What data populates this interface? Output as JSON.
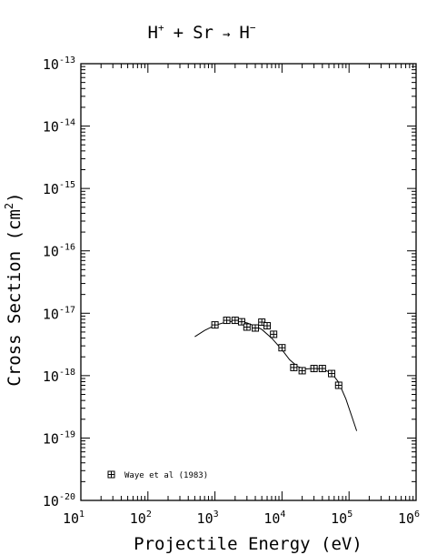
{
  "chart_data": {
    "type": "scatter",
    "title_parts": {
      "a": "H",
      "a_sup": "+",
      "plus": "+",
      "b": "Sr",
      "arrow": "→",
      "c": "H",
      "c_sup": "−"
    },
    "xlabel": "Projectile Energy (eV)",
    "ylabel_main": "Cross Section (cm",
    "ylabel_sup": "2",
    "ylabel_close": ")",
    "x_scale": "log",
    "y_scale": "log",
    "xlim": [
      10,
      1000000
    ],
    "ylim": [
      1e-20,
      1e-13
    ],
    "x_ticks": [
      {
        "base": "10",
        "exp": "1",
        "value": 10
      },
      {
        "base": "10",
        "exp": "2",
        "value": 100
      },
      {
        "base": "10",
        "exp": "3",
        "value": 1000
      },
      {
        "base": "10",
        "exp": "4",
        "value": 10000
      },
      {
        "base": "10",
        "exp": "5",
        "value": 100000
      },
      {
        "base": "10",
        "exp": "6",
        "value": 1000000
      }
    ],
    "y_ticks": [
      {
        "base": "10",
        "exp": "-13",
        "value": 1e-13
      },
      {
        "base": "10",
        "exp": "-14",
        "value": 1e-14
      },
      {
        "base": "10",
        "exp": "-15",
        "value": 1e-15
      },
      {
        "base": "10",
        "exp": "-16",
        "value": 1e-16
      },
      {
        "base": "10",
        "exp": "-17",
        "value": 1e-17
      },
      {
        "base": "10",
        "exp": "-18",
        "value": 1e-18
      },
      {
        "base": "10",
        "exp": "-19",
        "value": 1e-19
      },
      {
        "base": "10",
        "exp": "-20",
        "value": 1e-20
      }
    ],
    "legend_label": "Waye et al (1983)",
    "legend_position": "bottom-left",
    "series": [
      {
        "name": "Waye et al (1983)",
        "marker": "boxed-cross",
        "points": [
          {
            "x": 1000,
            "y": 6.5e-18
          },
          {
            "x": 1500,
            "y": 7.7e-18
          },
          {
            "x": 2000,
            "y": 7.7e-18
          },
          {
            "x": 2500,
            "y": 7.3e-18
          },
          {
            "x": 3000,
            "y": 6e-18
          },
          {
            "x": 4000,
            "y": 5.8e-18
          },
          {
            "x": 5000,
            "y": 7.2e-18
          },
          {
            "x": 6000,
            "y": 6.3e-18
          },
          {
            "x": 7500,
            "y": 4.6e-18
          },
          {
            "x": 10000,
            "y": 2.8e-18
          },
          {
            "x": 15000,
            "y": 1.35e-18
          },
          {
            "x": 20000,
            "y": 1.2e-18
          },
          {
            "x": 30000,
            "y": 1.3e-18
          },
          {
            "x": 40000,
            "y": 1.3e-18
          },
          {
            "x": 55000,
            "y": 1.08e-18
          },
          {
            "x": 70000,
            "y": 7e-19
          }
        ]
      }
    ],
    "fit_curve": [
      {
        "x": 500,
        "y": 4.2e-18
      },
      {
        "x": 700,
        "y": 5.3e-18
      },
      {
        "x": 1000,
        "y": 6.4e-18
      },
      {
        "x": 1500,
        "y": 7.3e-18
      },
      {
        "x": 2000,
        "y": 7.5e-18
      },
      {
        "x": 3000,
        "y": 7e-18
      },
      {
        "x": 4000,
        "y": 6.2e-18
      },
      {
        "x": 5000,
        "y": 5.5e-18
      },
      {
        "x": 7000,
        "y": 4e-18
      },
      {
        "x": 10000,
        "y": 2.6e-18
      },
      {
        "x": 13000,
        "y": 1.8e-18
      },
      {
        "x": 17000,
        "y": 1.4e-18
      },
      {
        "x": 22000,
        "y": 1.28e-18
      },
      {
        "x": 30000,
        "y": 1.3e-18
      },
      {
        "x": 40000,
        "y": 1.28e-18
      },
      {
        "x": 55000,
        "y": 1.1e-18
      },
      {
        "x": 70000,
        "y": 7.8e-19
      },
      {
        "x": 90000,
        "y": 4.2e-19
      },
      {
        "x": 110000,
        "y": 2.2e-19
      },
      {
        "x": 130000,
        "y": 1.3e-19
      }
    ]
  }
}
